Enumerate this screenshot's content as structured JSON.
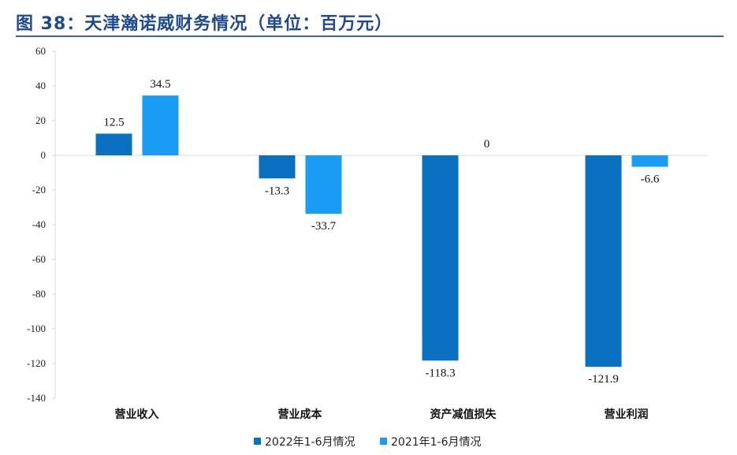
{
  "title": "图 38：天津瀚诺威财务情况（单位：百万元）",
  "chart_data": {
    "type": "bar",
    "title": "图 38：天津瀚诺威财务情况（单位：百万元）",
    "categories": [
      "营业收入",
      "营业成本",
      "资产减值损失",
      "营业利润"
    ],
    "series": [
      {
        "name": "2022年1-6月情况",
        "color": "#0a70c0",
        "values": [
          12.5,
          -13.3,
          -118.3,
          -121.9
        ],
        "labels": [
          "12.5",
          "-13.3",
          "-118.3",
          "-121.9"
        ]
      },
      {
        "name": "2021年1-6月情况",
        "color": "#1a9cf5",
        "values": [
          34.5,
          -33.7,
          0,
          -6.6
        ],
        "labels": [
          "34.5",
          "-33.7",
          "0",
          "-6.6"
        ]
      }
    ],
    "ylim": [
      -140,
      60
    ],
    "yticks": [
      60,
      40,
      20,
      0,
      -20,
      -40,
      -60,
      -80,
      -100,
      -120,
      -140
    ],
    "xlabel": "",
    "ylabel": "",
    "grid": false,
    "legend": "bottom"
  }
}
